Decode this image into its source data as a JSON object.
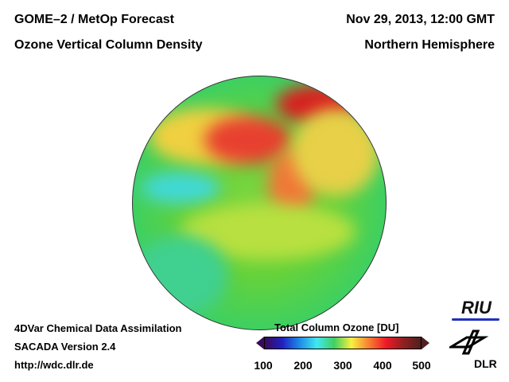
{
  "header": {
    "title_left": "GOME–2 / MetOp Forecast",
    "subtitle_left": "Ozone Vertical Column Density",
    "date": "Nov 29, 2013, 12:00 GMT",
    "region": "Northern Hemisphere"
  },
  "footer": {
    "line1": "4DVar Chemical Data Assimilation",
    "line2": "SACADA Version 2.4",
    "url": "http://wdc.dlr.de"
  },
  "colorbar": {
    "title": "Total Column Ozone [DU]",
    "ticks": [
      "100",
      "200",
      "300",
      "400",
      "500"
    ],
    "min": 100,
    "max": 500,
    "colors": [
      "#3a0a5a",
      "#2020c0",
      "#1e8ae8",
      "#40e8f0",
      "#40d060",
      "#f8f040",
      "#f88030",
      "#f01828",
      "#902020"
    ]
  },
  "logos": {
    "riu": "RIU",
    "dlr": "DLR"
  }
}
